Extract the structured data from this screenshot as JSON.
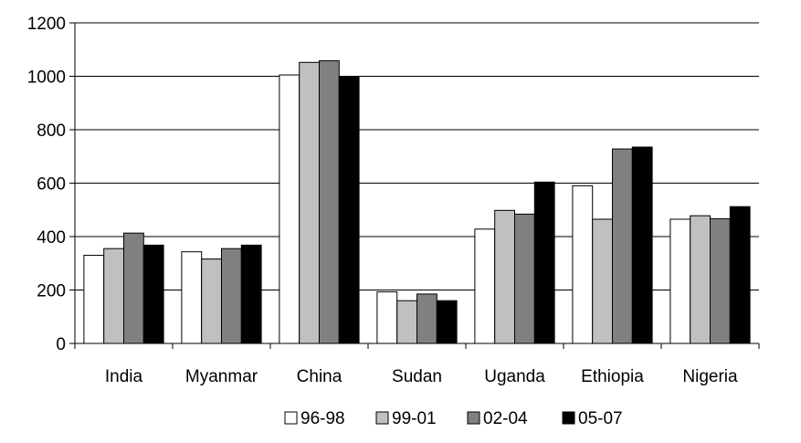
{
  "chart_data": {
    "type": "bar",
    "title": "",
    "xlabel": "",
    "ylabel": "",
    "ylim": [
      0,
      1200
    ],
    "yticks": [
      0,
      200,
      400,
      600,
      800,
      1000,
      1200
    ],
    "grid": true,
    "legend_position": "bottom",
    "categories": [
      "India",
      "Myanmar",
      "China",
      "Sudan",
      "Uganda",
      "Ethiopia",
      "Nigeria"
    ],
    "series": [
      {
        "name": "96-98",
        "color": "#ffffff",
        "values": [
          330,
          343,
          1005,
          193,
          428,
          590,
          465
        ]
      },
      {
        "name": "99-01",
        "color": "#c0c0c0",
        "values": [
          355,
          316,
          1052,
          160,
          498,
          465,
          478
        ]
      },
      {
        "name": "02-04",
        "color": "#808080",
        "values": [
          413,
          355,
          1058,
          185,
          484,
          728,
          467
        ]
      },
      {
        "name": "05-07",
        "color": "#000000",
        "values": [
          368,
          368,
          1000,
          160,
          604,
          735,
          512
        ]
      }
    ]
  }
}
